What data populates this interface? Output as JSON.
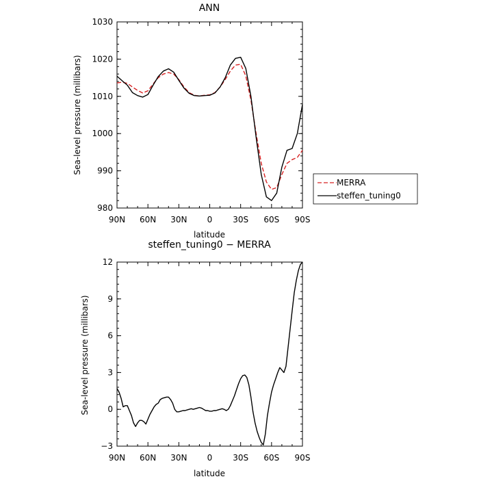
{
  "chart_data": [
    {
      "type": "line",
      "title": "ANN",
      "xlabel": "latitude",
      "ylabel": "Sea-level pressure (millibars)",
      "xlim": [
        90,
        -90
      ],
      "ylim": [
        980,
        1030
      ],
      "x_tick_values": [
        90,
        60,
        30,
        0,
        -30,
        -60,
        -90
      ],
      "x_tick_labels": [
        "90N",
        "60N",
        "30N",
        "0",
        "30S",
        "60S",
        "90S"
      ],
      "y_tick_values": [
        980,
        990,
        1000,
        1010,
        1020,
        1030
      ],
      "y_tick_labels": [
        "980",
        "990",
        "1000",
        "1010",
        "1020",
        "1030"
      ],
      "legend": "right",
      "series": [
        {
          "name": "MERRA",
          "color": "#d62020",
          "dash": "dashed",
          "x": [
            90,
            85,
            80,
            75,
            70,
            65,
            60,
            55,
            50,
            45,
            40,
            35,
            30,
            25,
            20,
            15,
            10,
            5,
            0,
            -5,
            -10,
            -15,
            -20,
            -25,
            -30,
            -35,
            -40,
            -45,
            -50,
            -55,
            -60,
            -65,
            -70,
            -75,
            -80,
            -85,
            -90
          ],
          "values": [
            1013.6,
            1013.8,
            1013.5,
            1012.5,
            1011.6,
            1010.9,
            1011.5,
            1013.3,
            1015.0,
            1016.0,
            1016.4,
            1016.0,
            1014.5,
            1012.5,
            1011.0,
            1010.3,
            1010.1,
            1010.3,
            1010.4,
            1011.0,
            1012.5,
            1014.5,
            1016.8,
            1018.4,
            1018.6,
            1015.5,
            1009.0,
            1000.0,
            992.0,
            987.0,
            985.0,
            985.5,
            989.0,
            992.0,
            993.0,
            993.6,
            995.5
          ]
        },
        {
          "name": "steffen_tuning0",
          "color": "#000000",
          "dash": "solid",
          "x": [
            90,
            85,
            80,
            75,
            70,
            65,
            60,
            55,
            50,
            45,
            40,
            35,
            30,
            25,
            20,
            15,
            10,
            5,
            0,
            -5,
            -10,
            -15,
            -20,
            -25,
            -30,
            -35,
            -40,
            -45,
            -50,
            -55,
            -60,
            -65,
            -70,
            -75,
            -80,
            -85,
            -90
          ],
          "values": [
            1015.4,
            1014.2,
            1013.0,
            1011.0,
            1010.2,
            1009.8,
            1010.5,
            1013.0,
            1015.3,
            1016.8,
            1017.4,
            1016.5,
            1014.3,
            1012.2,
            1010.8,
            1010.2,
            1010.1,
            1010.2,
            1010.3,
            1010.9,
            1012.5,
            1015.0,
            1018.4,
            1020.2,
            1020.5,
            1017.5,
            1010.0,
            999.0,
            989.0,
            983.0,
            982.0,
            984.0,
            991.0,
            995.5,
            996.0,
            1000.0,
            1007.8
          ]
        }
      ]
    },
    {
      "type": "line",
      "title": "steffen_tuning0 − MERRA",
      "xlabel": "latitude",
      "ylabel": "Sea-level pressure (millibars)",
      "xlim": [
        90,
        -90
      ],
      "ylim": [
        -3,
        12
      ],
      "x_tick_values": [
        90,
        60,
        30,
        0,
        -30,
        -60,
        -90
      ],
      "x_tick_labels": [
        "90N",
        "60N",
        "30N",
        "0",
        "30S",
        "60S",
        "90S"
      ],
      "y_tick_values": [
        -3,
        0,
        3,
        6,
        9,
        12
      ],
      "y_tick_labels": [
        "−3",
        "0",
        "3",
        "6",
        "9",
        "12"
      ],
      "series": [
        {
          "color": "#000000",
          "dash": "solid",
          "x": [
            90,
            88,
            86,
            84,
            82,
            80,
            78,
            76,
            74,
            72,
            70,
            68,
            66,
            64,
            62,
            60,
            58,
            56,
            54,
            52,
            50,
            48,
            46,
            44,
            42,
            40,
            38,
            36,
            34,
            32,
            30,
            28,
            26,
            24,
            22,
            20,
            18,
            16,
            14,
            12,
            10,
            8,
            6,
            4,
            2,
            0,
            -2,
            -4,
            -6,
            -8,
            -10,
            -12,
            -14,
            -16,
            -18,
            -20,
            -22,
            -24,
            -26,
            -28,
            -30,
            -32,
            -34,
            -36,
            -38,
            -40,
            -42,
            -44,
            -46,
            -48,
            -50,
            -52,
            -54,
            -56,
            -58,
            -60,
            -62,
            -64,
            -66,
            -68,
            -70,
            -72,
            -74,
            -76,
            -78,
            -80,
            -82,
            -84,
            -86,
            -88,
            -90
          ],
          "values": [
            1.7,
            1.4,
            0.9,
            0.2,
            0.3,
            0.3,
            -0.1,
            -0.5,
            -1.1,
            -1.4,
            -1.1,
            -0.9,
            -0.9,
            -1.0,
            -1.2,
            -0.8,
            -0.4,
            -0.1,
            0.2,
            0.4,
            0.5,
            0.8,
            0.9,
            0.95,
            1.0,
            1.0,
            0.8,
            0.5,
            0.0,
            -0.2,
            -0.2,
            -0.15,
            -0.1,
            -0.1,
            -0.05,
            0.0,
            0.05,
            0.0,
            0.05,
            0.1,
            0.15,
            0.1,
            0.0,
            -0.1,
            -0.1,
            -0.15,
            -0.15,
            -0.1,
            -0.1,
            -0.05,
            0.0,
            0.05,
            0.0,
            -0.1,
            0.0,
            0.3,
            0.7,
            1.1,
            1.6,
            2.1,
            2.5,
            2.75,
            2.8,
            2.6,
            2.0,
            1.0,
            -0.2,
            -1.1,
            -1.8,
            -2.3,
            -2.7,
            -2.9,
            -2.0,
            -0.5,
            0.5,
            1.4,
            2.0,
            2.5,
            3.0,
            3.4,
            3.2,
            3.0,
            3.5,
            5.0,
            6.5,
            8.0,
            9.5,
            10.5,
            11.3,
            11.8,
            12.0
          ]
        }
      ]
    }
  ]
}
